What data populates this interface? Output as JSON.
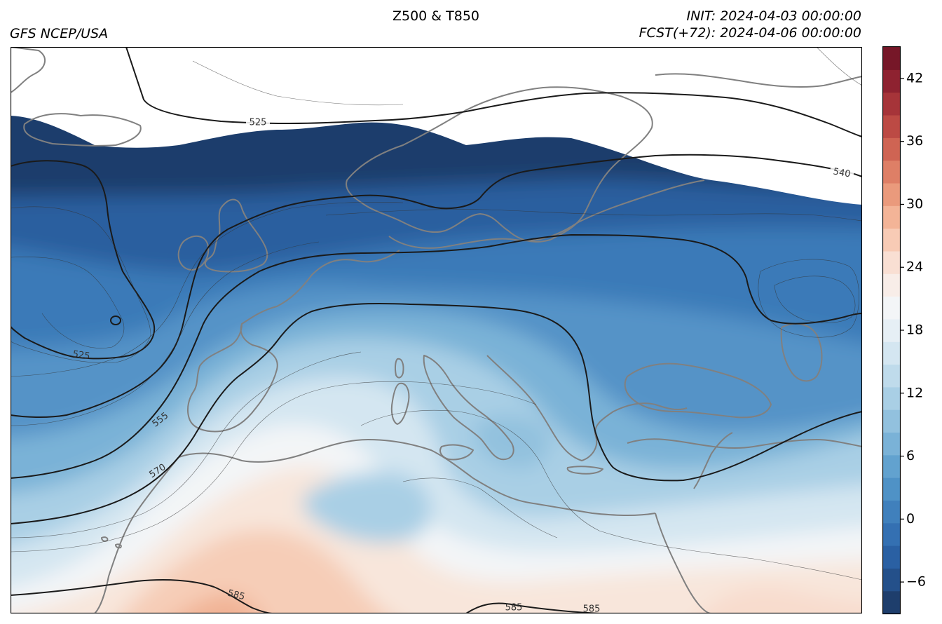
{
  "header": {
    "title": "Z500 & T850",
    "source": "GFS NCEP/USA",
    "init": "INIT: 2024-04-03 00:00:00",
    "forecast": "FCST(+72): 2024-04-06 00:00:00"
  },
  "map": {
    "region": "Europe / North Atlantic / Mediterranean",
    "fill_variable": "T850",
    "contour_variable": "Z500",
    "coastline_color": "#808080",
    "contour_color": "#1a1a1a",
    "contour_labels": [
      {
        "text": "525",
        "name": "contour-label-525-north"
      },
      {
        "text": "540",
        "name": "contour-label-540"
      },
      {
        "text": "525",
        "name": "contour-label-525-low"
      },
      {
        "text": "555",
        "name": "contour-label-555"
      },
      {
        "text": "570",
        "name": "contour-label-570"
      },
      {
        "text": "585",
        "name": "contour-label-585-west"
      },
      {
        "text": "585",
        "name": "contour-label-585-mid"
      },
      {
        "text": "585",
        "name": "contour-label-585-east"
      }
    ]
  },
  "colorbar": {
    "min": -9,
    "max": 45,
    "ticks": [
      -6,
      0,
      6,
      12,
      18,
      24,
      30,
      36,
      42
    ],
    "tick_labels": [
      "−6",
      "0",
      "6",
      "12",
      "18",
      "24",
      "30",
      "36",
      "42"
    ],
    "colors": [
      "#1e3e6c",
      "#24508a",
      "#2a60a3",
      "#3470b2",
      "#4080bc",
      "#4f92c6",
      "#62a2cf",
      "#7ab2d7",
      "#92c1de",
      "#a9cfe5",
      "#bfdbeb",
      "#d4e6f1",
      "#e6eff5",
      "#f3f5f7",
      "#f8ede8",
      "#f9dfd3",
      "#f8cbb5",
      "#f3b497",
      "#ea9a7c",
      "#de7f66",
      "#cf6453",
      "#bc4a44",
      "#a63439",
      "#8e2230",
      "#761728"
    ]
  }
}
